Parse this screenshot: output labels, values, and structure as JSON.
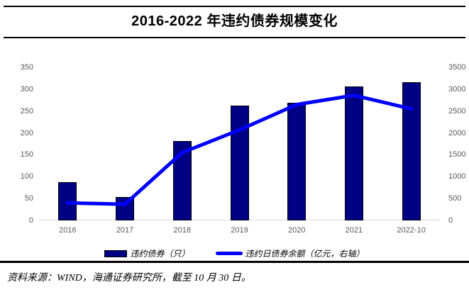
{
  "figure": {
    "title": "2016-2022 年违约债券规模变化",
    "source_note": "资料来源：WIND，海通证券研究所，截至 10 月 30 日。"
  },
  "chart_data": {
    "type": "bar",
    "title": "2016-2022 年违约债券规模变化",
    "categories": [
      "2016",
      "2017",
      "2018",
      "2019",
      "2020",
      "2021",
      "2022-10"
    ],
    "series": [
      {
        "name": "违约债券（只）",
        "type": "bar",
        "axis": "left",
        "color": "#000085",
        "values": [
          85,
          50,
          178,
          260,
          265,
          303,
          313
        ]
      },
      {
        "name": "违约日债券余额（亿元，右轴）",
        "type": "line",
        "axis": "right",
        "color": "#0000FE",
        "values": [
          400,
          370,
          1550,
          2070,
          2650,
          2860,
          2550
        ]
      }
    ],
    "left_axis": {
      "min": 0,
      "max": 350,
      "ticks": [
        0,
        50,
        100,
        150,
        200,
        250,
        300,
        350
      ]
    },
    "right_axis": {
      "min": 0,
      "max": 3500,
      "ticks": [
        0,
        500,
        1000,
        1500,
        2000,
        2500,
        3000,
        3500
      ]
    },
    "grid": false,
    "legend_position": "bottom"
  },
  "colors": {
    "bar_fill": "#000085",
    "bar_border": "#000000",
    "line": "#0000FE",
    "axis_text": "#595959",
    "baseline": "#d9d9d9",
    "rule": "#000000"
  }
}
